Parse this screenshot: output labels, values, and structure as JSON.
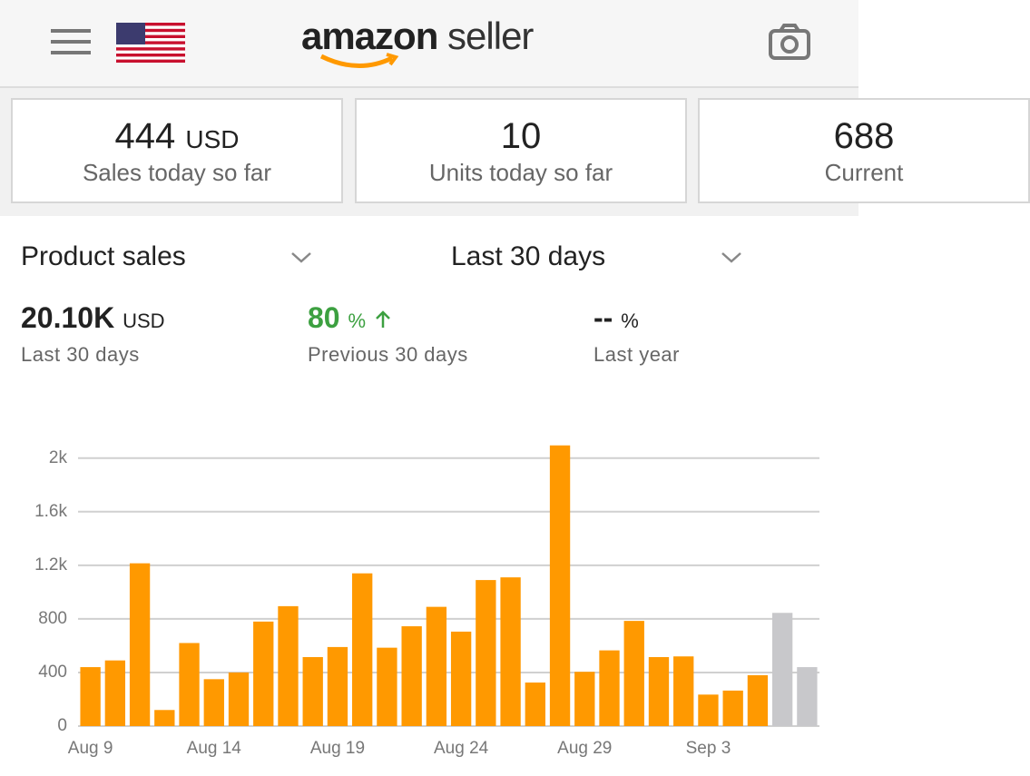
{
  "header": {
    "brand": "amazon",
    "brand_suffix": "seller"
  },
  "kpis": [
    {
      "value": "444",
      "unit": "USD",
      "label": "Sales today so far"
    },
    {
      "value": "10",
      "label": "Units today so far"
    },
    {
      "value": "688",
      "label": "Current"
    }
  ],
  "controls": {
    "metric": "Product sales",
    "period": "Last 30 days"
  },
  "summary": [
    {
      "value": "20.10K",
      "unit": "USD",
      "label": "Last 30 days"
    },
    {
      "value": "80",
      "unit": "%",
      "label": "Previous 30 days"
    },
    {
      "value": "--",
      "unit": "%",
      "label": "Last year"
    }
  ],
  "chart_data": {
    "type": "bar",
    "categories": [
      "Aug 9",
      null,
      null,
      null,
      null,
      "Aug 14",
      null,
      null,
      null,
      null,
      "Aug 19",
      null,
      null,
      null,
      null,
      "Aug 24",
      null,
      null,
      null,
      null,
      "Aug 29",
      null,
      null,
      null,
      null,
      "Sep 3",
      null,
      null,
      null,
      null
    ],
    "values": [
      440,
      490,
      1215,
      120,
      620,
      350,
      400,
      780,
      895,
      515,
      590,
      1140,
      585,
      745,
      890,
      705,
      1090,
      1110,
      325,
      2095,
      405,
      565,
      785,
      515,
      520,
      235,
      265,
      380,
      845,
      440
    ],
    "colors": [
      "#ff9900",
      "#ff9900",
      "#ff9900",
      "#ff9900",
      "#ff9900",
      "#ff9900",
      "#ff9900",
      "#ff9900",
      "#ff9900",
      "#ff9900",
      "#ff9900",
      "#ff9900",
      "#ff9900",
      "#ff9900",
      "#ff9900",
      "#ff9900",
      "#ff9900",
      "#ff9900",
      "#ff9900",
      "#ff9900",
      "#ff9900",
      "#ff9900",
      "#ff9900",
      "#ff9900",
      "#ff9900",
      "#ff9900",
      "#ff9900",
      "#ff9900",
      "#c8c8cb",
      "#c8c8cb"
    ],
    "ylim": [
      0,
      2100
    ],
    "yticks": [
      0,
      400,
      800,
      {
        "value": 1200,
        "label": "1.2k"
      },
      {
        "value": 1600,
        "label": "1.6k"
      },
      {
        "value": 2000,
        "label": "2k"
      }
    ],
    "grid": true
  }
}
